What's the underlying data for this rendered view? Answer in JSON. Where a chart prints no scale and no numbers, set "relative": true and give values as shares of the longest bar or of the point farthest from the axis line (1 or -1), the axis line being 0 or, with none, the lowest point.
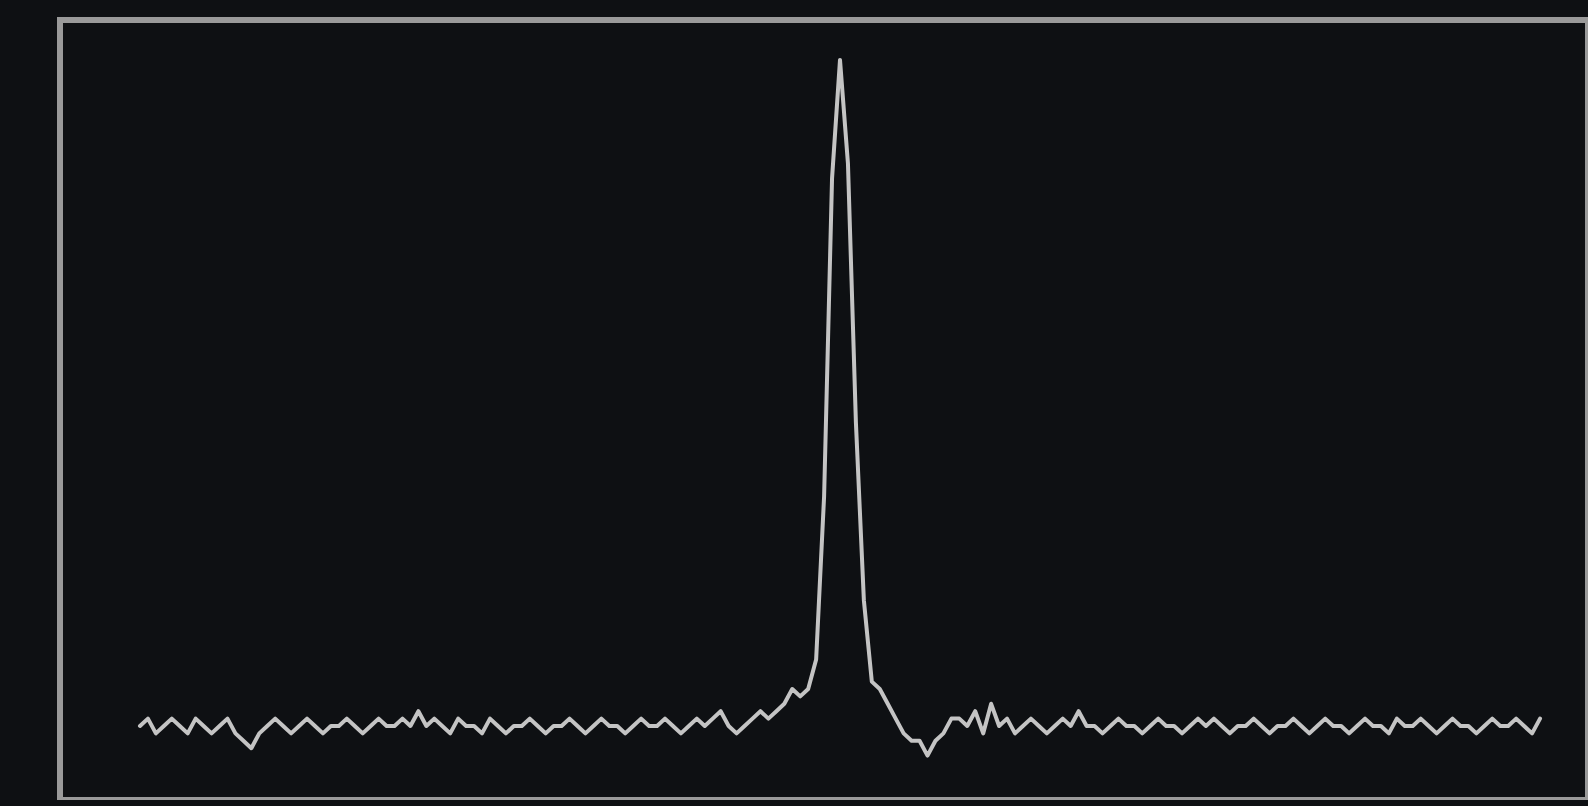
{
  "chart_data": {
    "type": "line",
    "relative": true,
    "categories": [
      null,
      null,
      null,
      null,
      null,
      null,
      null,
      null,
      null,
      null,
      null,
      null,
      null,
      null,
      null,
      null,
      null,
      null,
      null,
      null,
      null,
      null,
      null,
      null,
      null,
      null,
      null,
      null,
      null,
      null,
      null,
      null,
      null,
      null,
      null,
      null,
      null,
      null,
      null,
      null,
      null,
      null,
      null,
      null,
      null,
      null,
      null,
      null,
      null,
      null,
      null,
      null,
      null,
      null,
      null,
      null,
      null,
      null,
      null,
      null,
      null,
      null,
      null,
      null,
      null,
      null,
      null,
      null,
      null,
      null,
      null,
      null,
      null,
      null,
      null,
      null,
      null,
      null,
      null,
      null,
      null,
      null,
      null,
      null,
      null,
      null,
      null,
      null,
      null,
      null,
      null,
      null,
      null,
      null,
      null,
      null,
      null,
      null,
      null,
      null,
      null,
      null,
      null,
      null,
      null,
      null,
      null,
      null,
      null,
      null,
      null,
      null,
      null,
      null,
      null,
      null,
      null,
      null,
      null,
      null,
      null,
      null,
      null,
      null,
      null,
      null,
      null,
      null,
      null,
      null,
      null,
      null,
      null,
      null,
      null,
      null,
      null,
      null,
      null,
      null,
      null,
      null,
      null,
      null,
      null,
      null,
      null,
      null,
      null,
      null,
      null,
      null,
      null,
      null,
      null,
      null,
      null,
      null,
      null,
      null,
      null,
      null,
      null,
      null,
      null,
      null,
      null,
      null,
      null,
      null,
      null,
      null,
      null,
      null,
      null,
      null,
      null
    ],
    "series": [
      {
        "color": "#c4c4c4",
        "values": [
          0.1,
          0.11,
          0.09,
          0.1,
          0.11,
          0.1,
          0.09,
          0.11,
          0.1,
          0.09,
          0.1,
          0.11,
          0.09,
          0.08,
          0.07,
          0.09,
          0.1,
          0.11,
          0.1,
          0.09,
          0.1,
          0.11,
          0.1,
          0.09,
          0.1,
          0.1,
          0.11,
          0.1,
          0.09,
          0.1,
          0.11,
          0.1,
          0.1,
          0.11,
          0.1,
          0.12,
          0.1,
          0.11,
          0.1,
          0.09,
          0.11,
          0.1,
          0.1,
          0.09,
          0.11,
          0.1,
          0.09,
          0.1,
          0.1,
          0.11,
          0.1,
          0.09,
          0.1,
          0.1,
          0.11,
          0.1,
          0.09,
          0.1,
          0.11,
          0.1,
          0.1,
          0.09,
          0.1,
          0.11,
          0.1,
          0.1,
          0.11,
          0.1,
          0.09,
          0.1,
          0.11,
          0.1,
          0.11,
          0.12,
          0.1,
          0.09,
          0.1,
          0.11,
          0.12,
          0.11,
          0.12,
          0.13,
          0.15,
          0.14,
          0.15,
          0.19,
          0.41,
          0.84,
          1,
          0.86,
          0.51,
          0.27,
          0.16,
          0.15,
          0.13,
          0.11,
          0.09,
          0.08,
          0.08,
          0.06,
          0.08,
          0.09,
          0.11,
          0.11,
          0.1,
          0.12,
          0.09,
          0.13,
          0.1,
          0.11,
          0.09,
          0.1,
          0.11,
          0.1,
          0.09,
          0.1,
          0.11,
          0.1,
          0.12,
          0.1,
          0.1,
          0.09,
          0.1,
          0.11,
          0.1,
          0.1,
          0.09,
          0.1,
          0.11,
          0.1,
          0.1,
          0.09,
          0.1,
          0.11,
          0.1,
          0.11,
          0.1,
          0.09,
          0.1,
          0.1,
          0.11,
          0.1,
          0.09,
          0.1,
          0.1,
          0.11,
          0.1,
          0.09,
          0.1,
          0.11,
          0.1,
          0.1,
          0.09,
          0.1,
          0.11,
          0.1,
          0.1,
          0.09,
          0.11,
          0.1,
          0.1,
          0.11,
          0.1,
          0.09,
          0.1,
          0.11,
          0.1,
          0.1,
          0.09,
          0.1,
          0.11,
          0.1,
          0.1,
          0.11,
          0.1,
          0.09,
          0.11
        ]
      }
    ]
  }
}
